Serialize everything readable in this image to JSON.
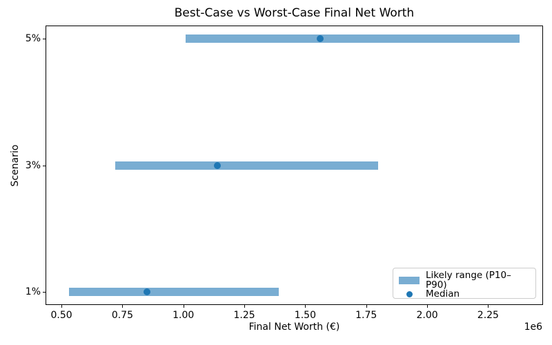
{
  "chart_data": {
    "type": "bar",
    "variant": "horizontal-range-bar",
    "title": "Best-Case vs Worst-Case Final Net Worth",
    "xlabel": "Final Net Worth (€)",
    "ylabel": "Scenario",
    "categories": [
      "1%",
      "3%",
      "5%"
    ],
    "series": [
      {
        "name": "P10 (range start)",
        "values": [
          530000,
          720000,
          1010000
        ]
      },
      {
        "name": "Median",
        "values": [
          850000,
          1140000,
          1560000
        ]
      },
      {
        "name": "P90 (range end)",
        "values": [
          1390000,
          1800000,
          2380000
        ]
      }
    ],
    "xlim": [
      437500,
      2472500
    ],
    "ylim": [
      -0.1,
      2.1
    ],
    "x_ticks": [
      500000,
      750000,
      1000000,
      1250000,
      1500000,
      1750000,
      2000000,
      2250000
    ],
    "x_tick_labels": [
      "0.50",
      "0.75",
      "1.00",
      "1.25",
      "1.50",
      "1.75",
      "2.00",
      "2.25"
    ],
    "x_offset_text": "1e6",
    "grid": false,
    "legend": {
      "position": "lower right",
      "items": [
        {
          "label": "Likely range (P10–P90)",
          "marker": "patch"
        },
        {
          "label": "Median",
          "marker": "dot"
        }
      ]
    },
    "colors": {
      "range_bar": "#79add2",
      "median_dot": "#1f77b4",
      "text": "#000000",
      "legend_border": "#cccccc"
    }
  }
}
